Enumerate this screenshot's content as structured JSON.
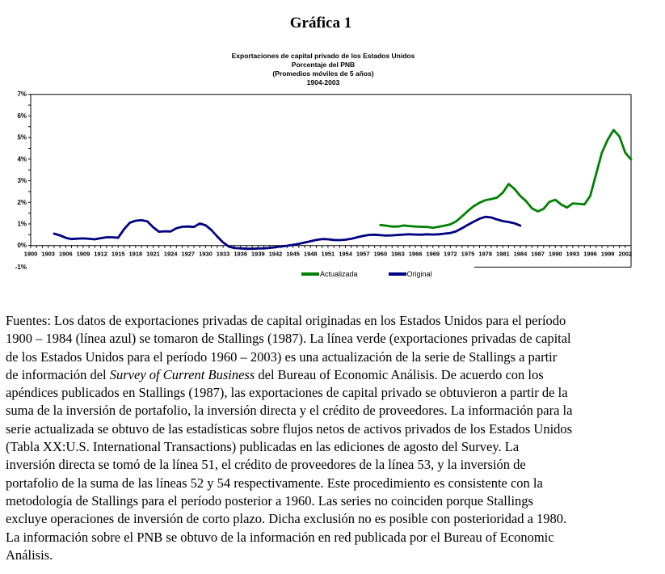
{
  "page": {
    "title": "Gráfica 1"
  },
  "chart": {
    "title_lines": [
      "Exportaciones de capital privado de los Estados Unidos",
      "Porcentaje del PNB",
      "(Promedios móviles de 5 años)",
      "1904-2003"
    ]
  },
  "chart_data": {
    "type": "line",
    "title": "Exportaciones de capital privado de los Estados Unidos",
    "subtitle": [
      "Porcentaje del PNB",
      "(Promedios móviles de 5 años)",
      "1904-2003"
    ],
    "xlabel": "",
    "ylabel": "",
    "xlim": [
      1900,
      2003
    ],
    "ylim": [
      -1,
      7
    ],
    "x_tick_label_step": 3,
    "x_tick_labels": [
      "1900",
      "1903",
      "1906",
      "1909",
      "1912",
      "1915",
      "1918",
      "1921",
      "1924",
      "1927",
      "1930",
      "1933",
      "1936",
      "1939",
      "1942",
      "1945",
      "1948",
      "1951",
      "1954",
      "1957",
      "1960",
      "1963",
      "1966",
      "1969",
      "1972",
      "1975",
      "1978",
      "1981",
      "1984",
      "1987",
      "1990",
      "1993",
      "1996",
      "1999",
      "2002"
    ],
    "y_tick_labels": [
      "7%",
      "6%",
      "5%",
      "4%",
      "3%",
      "2%",
      "1%",
      "0%",
      "-1%"
    ],
    "grid": false,
    "legend_position": "bottom",
    "series": [
      {
        "name": "Actualizada",
        "color": "#008000",
        "start_year": 1960,
        "values": [
          0.95,
          0.92,
          0.88,
          0.88,
          0.93,
          0.9,
          0.88,
          0.87,
          0.86,
          0.82,
          0.87,
          0.92,
          0.98,
          1.12,
          1.35,
          1.6,
          1.82,
          1.98,
          2.1,
          2.15,
          2.22,
          2.45,
          2.85,
          2.62,
          2.3,
          2.05,
          1.72,
          1.58,
          1.7,
          2.02,
          2.12,
          1.9,
          1.76,
          1.95,
          1.93,
          1.9,
          2.3,
          3.3,
          4.3,
          4.9,
          5.35,
          5.05,
          4.3,
          3.98
        ]
      },
      {
        "name": "Original",
        "color": "#000080",
        "start_year": 1904,
        "values": [
          0.55,
          0.47,
          0.36,
          0.3,
          0.32,
          0.33,
          0.31,
          0.29,
          0.34,
          0.38,
          0.38,
          0.36,
          0.75,
          1.05,
          1.15,
          1.17,
          1.12,
          0.85,
          0.64,
          0.66,
          0.65,
          0.8,
          0.87,
          0.88,
          0.86,
          1.02,
          0.94,
          0.72,
          0.42,
          0.15,
          -0.05,
          -0.12,
          -0.13,
          -0.15,
          -0.15,
          -0.14,
          -0.13,
          -0.11,
          -0.08,
          -0.04,
          -0.01,
          0.03,
          0.08,
          0.14,
          0.2,
          0.26,
          0.3,
          0.29,
          0.26,
          0.25,
          0.27,
          0.31,
          0.38,
          0.44,
          0.49,
          0.5,
          0.48,
          0.46,
          0.47,
          0.49,
          0.51,
          0.52,
          0.51,
          0.5,
          0.52,
          0.51,
          0.52,
          0.55,
          0.58,
          0.66,
          0.8,
          0.96,
          1.1,
          1.24,
          1.33,
          1.3,
          1.21,
          1.13,
          1.09,
          1.03,
          0.92
        ]
      }
    ]
  },
  "fuentes": {
    "lines": [
      [
        {
          "text": "Fuentes: Los datos de exportaciones privadas de capital originadas en los Estados Unidos para el período",
          "italic": false
        }
      ],
      [
        {
          "text": "1900 – 1984 (línea azul) se tomaron de Stallings (1987). La línea verde (exportaciones privadas de capital",
          "italic": false
        }
      ],
      [
        {
          "text": "de los Estados Unidos para el período 1960 – 2003) es una actualización de la serie de Stallings a partir",
          "italic": false
        }
      ],
      [
        {
          "text": "de información del ",
          "italic": false
        },
        {
          "text": "Survey of Current Business",
          "italic": true
        },
        {
          "text": " del Bureau of Economic Análisis. De acuerdo con los",
          "italic": false
        }
      ],
      [
        {
          "text": "apéndices publicados en Stallings (1987), las exportaciones de capital privado se obtuvieron a partir de la",
          "italic": false
        }
      ],
      [
        {
          "text": "suma de la inversión de portafolio, la inversión directa y el crédito de proveedores. La información para la",
          "italic": false
        }
      ],
      [
        {
          "text": "serie actualizada se obtuvo de las estadísticas sobre flujos netos de activos privados de los Estados Unidos",
          "italic": false
        }
      ],
      [
        {
          "text": "(Tabla XX:U.S. International Transactions) publicadas en las ediciones de agosto del Survey. La",
          "italic": false
        }
      ],
      [
        {
          "text": "inversión directa se tomó de la línea 51, el crédito de proveedores de la línea 53, y la inversión de",
          "italic": false
        }
      ],
      [
        {
          "text": "portafolio de la suma de las líneas 52 y 54 respectivamente. Este procedimiento es consistente con la",
          "italic": false
        }
      ],
      [
        {
          "text": "metodología de Stallings para el período posterior a 1960. Las series no coinciden porque Stallings",
          "italic": false
        }
      ],
      [
        {
          "text": "excluye operaciones de inversión de corto plazo. Dicha exclusión no es posible con posterioridad a 1980.",
          "italic": false
        }
      ],
      [
        {
          "text": "La información sobre el PNB se obtuvo de la información en red publicada por el Bureau of Economic",
          "italic": false
        }
      ],
      [
        {
          "text": "Análisis.",
          "italic": false
        }
      ]
    ]
  }
}
